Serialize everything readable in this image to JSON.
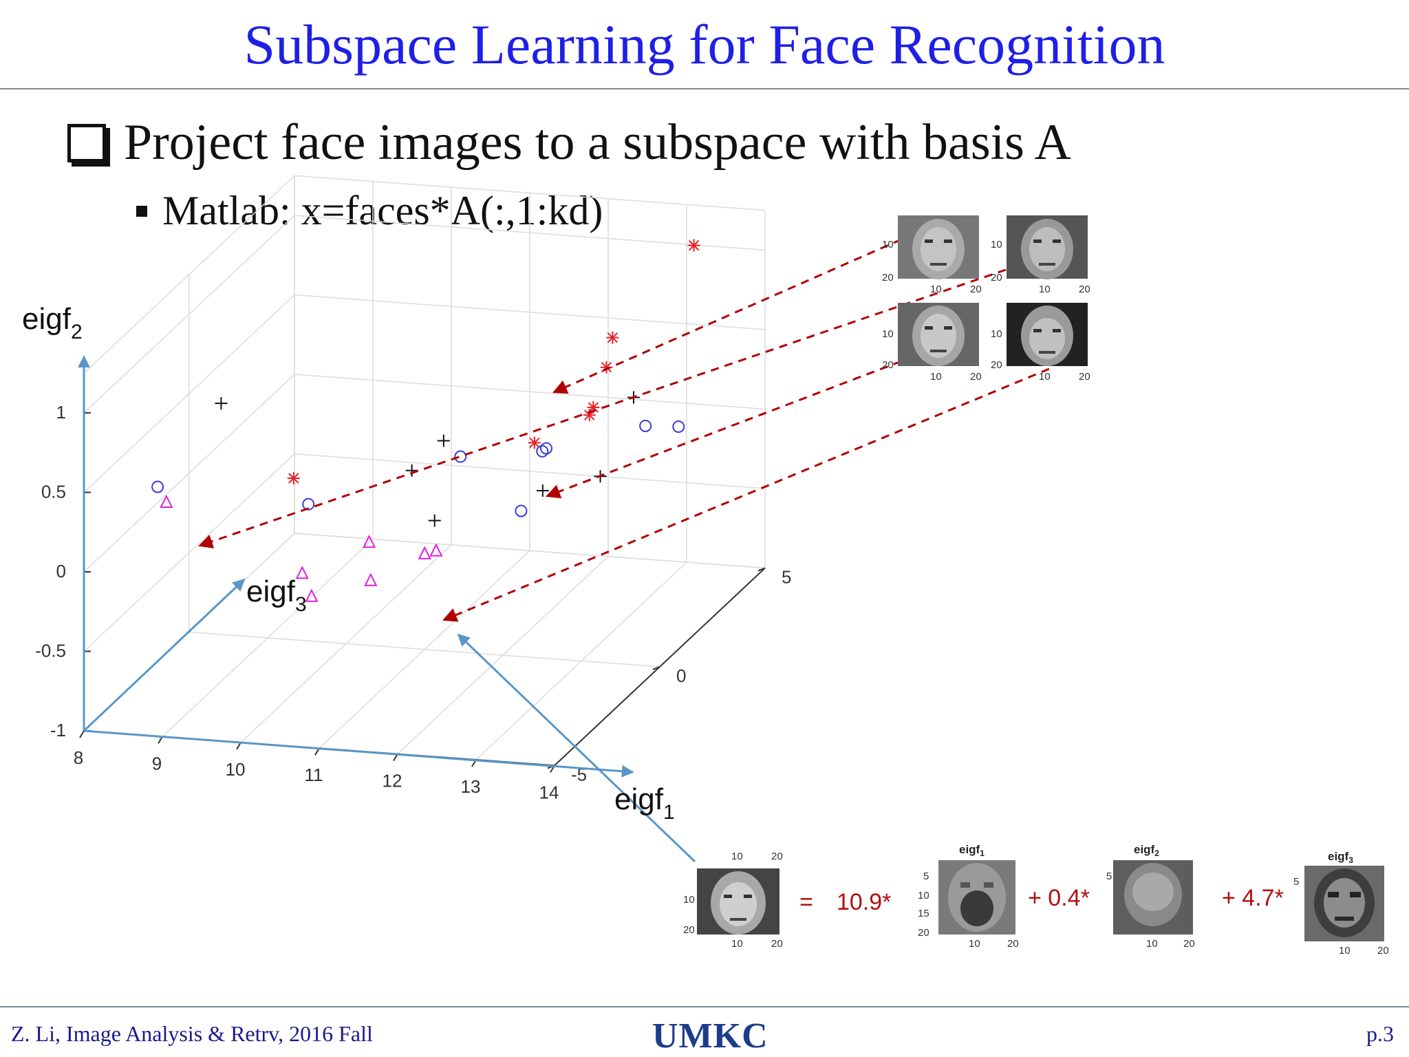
{
  "slide": {
    "title": "Subspace Learning for Face Recognition",
    "bullet": "Project face images to a subspace with basis A",
    "sub_bullet": "Matlab: x=faces*A(:,1:kd)",
    "footer_left": "Z. Li,  Image Analysis & Retrv, 2016 Fall",
    "footer_logo": "UMKC",
    "footer_page": "p.3"
  },
  "axes_labels": {
    "eigf2": {
      "base": "eigf",
      "sub": "2"
    },
    "eigf3": {
      "base": "eigf",
      "sub": "3"
    },
    "eigf1": {
      "base": "eigf",
      "sub": "1"
    }
  },
  "chart_data": {
    "type": "scatter",
    "dimensions": 3,
    "title": "",
    "x_ticks": [
      "8",
      "9",
      "10",
      "11",
      "12",
      "13",
      "14"
    ],
    "y_ticks": [
      "5",
      "0",
      "-5"
    ],
    "z_ticks": [
      "1",
      "0.5",
      "0",
      "-0.5",
      "-1"
    ],
    "grid": true,
    "series": [
      {
        "marker": "asterisk",
        "color": "#e8202a",
        "points": [
          [
            9.6,
            -1.0,
            0.15
          ],
          [
            12.0,
            1.5,
            0.15
          ],
          [
            12.3,
            3.8,
            0.35
          ],
          [
            12.7,
            1.5,
            0.35
          ],
          [
            12.75,
            1.5,
            0.4
          ],
          [
            12.7,
            2.6,
            0.7
          ],
          [
            13.2,
            4.6,
            1.05
          ]
        ]
      },
      {
        "marker": "plus",
        "color": "#111111",
        "points": [
          [
            8.3,
            0.4,
            0.4
          ],
          [
            10.6,
            2.4,
            0.0
          ],
          [
            11.0,
            -0.6,
            0.2
          ],
          [
            11.8,
            -2.5,
            0.15
          ],
          [
            12.4,
            0.4,
            0.0
          ],
          [
            12.7,
            3.6,
            0.2
          ],
          [
            13.0,
            0.9,
            0.05
          ]
        ]
      },
      {
        "marker": "circle",
        "color": "#3a3adc",
        "points": [
          [
            8.0,
            -1.5,
            0.1
          ],
          [
            9.6,
            -0.3,
            -0.1
          ],
          [
            11.7,
            -0.9,
            0.35
          ],
          [
            12.1,
            1.5,
            0.1
          ],
          [
            12.15,
            1.5,
            0.12
          ],
          [
            12.5,
            -1.0,
            0.05
          ],
          [
            13.2,
            2.3,
            0.2
          ],
          [
            13.3,
            3.5,
            0.05
          ]
        ]
      },
      {
        "marker": "triangle",
        "color": "#e020d8",
        "points": [
          [
            8.3,
            -2.2,
            0.1
          ],
          [
            10.3,
            -3.2,
            -0.15
          ],
          [
            10.5,
            -3.5,
            -0.25
          ],
          [
            11.1,
            -3.0,
            0.05
          ],
          [
            11.2,
            -3.3,
            -0.15
          ],
          [
            11.7,
            -2.6,
            -0.05
          ],
          [
            11.9,
            -2.8,
            0.0
          ]
        ]
      }
    ]
  },
  "face_thumbnails": {
    "tick_labels": {
      "row_10": "10",
      "row_20": "20",
      "col_10": "10",
      "col_20": "20"
    }
  },
  "equation": {
    "eq_sign": "=",
    "coef1": "10.9*",
    "coef2": "+ 0.4*",
    "coef3": "+ 4.7*",
    "eig1_title": "eigf",
    "eig1_sub": "1",
    "eig2_title": "eigf",
    "eig2_sub": "2",
    "eig3_title": "eigf",
    "eig3_sub": "3",
    "eig_ticks": [
      "5",
      "10",
      "15",
      "20"
    ]
  },
  "colors": {
    "title": "#1f1fe6",
    "arrow_blue": "#5a96c8",
    "dashed_red": "#b00000"
  }
}
